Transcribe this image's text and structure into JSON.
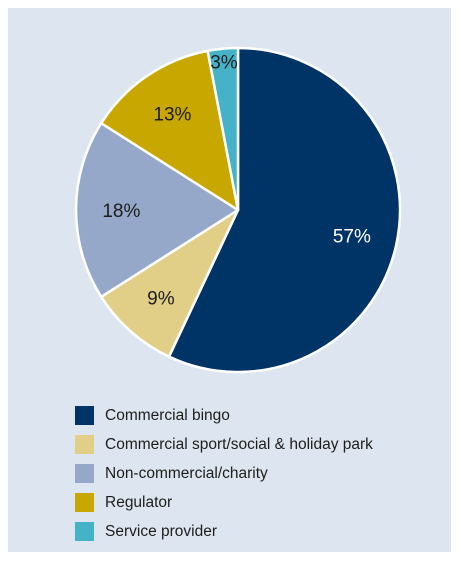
{
  "chart_data": {
    "type": "pie",
    "slices": [
      {
        "label": "Commercial bingo",
        "value": 57,
        "display": "57%",
        "color": "#003366",
        "label_color": "#ffffff"
      },
      {
        "label": "Commercial sport/social & holiday park",
        "value": 9,
        "display": "9%",
        "color": "#e2cf87",
        "label_color": "#1d1d1b"
      },
      {
        "label": "Non-commercial/charity",
        "value": 18,
        "display": "18%",
        "color": "#95a8c9",
        "label_color": "#1d1d1b"
      },
      {
        "label": "Regulator",
        "value": 13,
        "display": "13%",
        "color": "#c8a800",
        "label_color": "#1d1d1b"
      },
      {
        "label": "Service provider",
        "value": 3,
        "display": "3%",
        "color": "#46b2c7",
        "label_color": "#1d1d1b"
      }
    ]
  },
  "legend": {
    "items": [
      {
        "label": "Commercial bingo",
        "color": "#003366"
      },
      {
        "label": "Commercial sport/social & holiday park",
        "color": "#e2cf87"
      },
      {
        "label": "Non-commercial/charity",
        "color": "#95a8c9"
      },
      {
        "label": "Regulator",
        "color": "#c8a800"
      },
      {
        "label": "Service provider",
        "color": "#46b2c7"
      }
    ]
  }
}
